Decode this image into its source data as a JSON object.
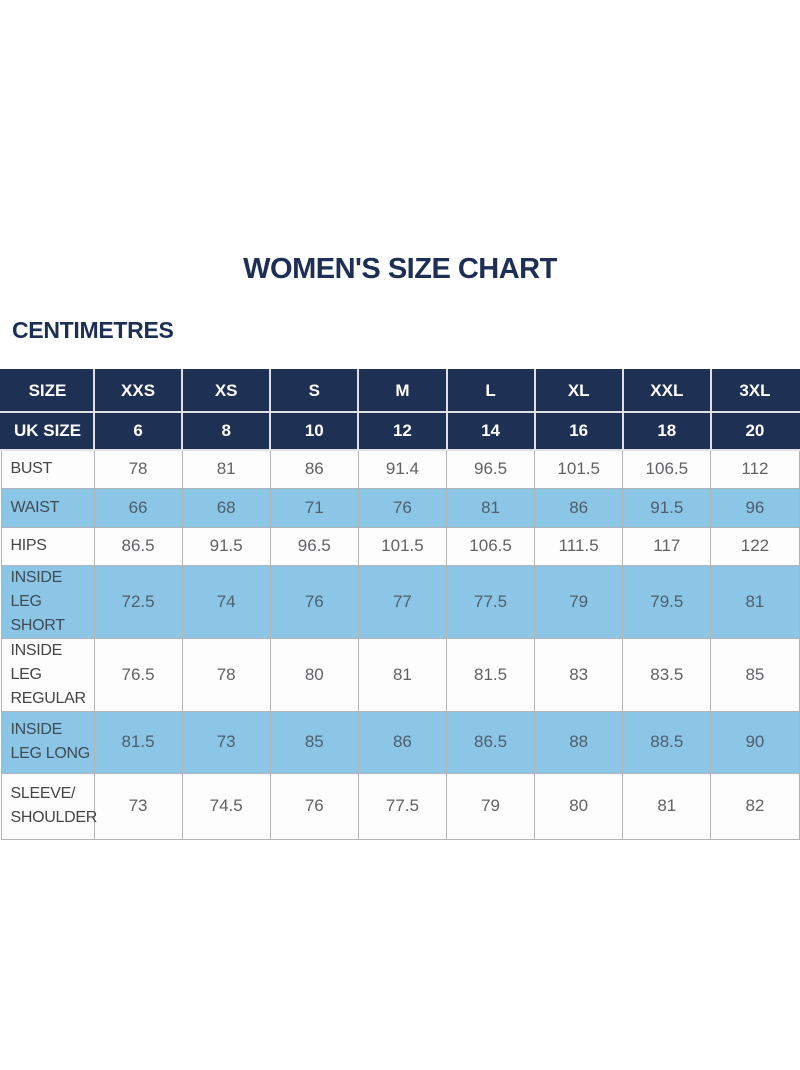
{
  "page": {
    "title": "WOMEN'S SIZE CHART",
    "unit_label": "CENTIMETRES"
  },
  "colors": {
    "navy": "#1e3054",
    "light_blue": "#8cc6e7",
    "header_text": "#ffffff",
    "title_text": "#1d2f55",
    "label_text": "#454547",
    "value_text": "#616265",
    "border": "#b3b4b6"
  },
  "chart_data": {
    "type": "table",
    "title": "WOMEN'S SIZE CHART",
    "unit": "CENTIMETRES",
    "header_rows": [
      {
        "label": "SIZE",
        "values": [
          "XXS",
          "XS",
          "S",
          "M",
          "L",
          "XL",
          "XXL",
          "3XL"
        ]
      },
      {
        "label": "UK SIZE",
        "values": [
          "6",
          "8",
          "10",
          "12",
          "14",
          "16",
          "18",
          "20"
        ]
      }
    ],
    "rows": [
      {
        "label": "BUST",
        "shaded": false,
        "values": [
          "78",
          "81",
          "86",
          "91.4",
          "96.5",
          "101.5",
          "106.5",
          "112"
        ]
      },
      {
        "label": "WAIST",
        "shaded": true,
        "values": [
          "66",
          "68",
          "71",
          "76",
          "81",
          "86",
          "91.5",
          "96"
        ]
      },
      {
        "label": "HIPS",
        "shaded": false,
        "values": [
          "86.5",
          "91.5",
          "96.5",
          "101.5",
          "106.5",
          "111.5",
          "117",
          "122"
        ]
      },
      {
        "label": "INSIDE LEG SHORT",
        "shaded": true,
        "values": [
          "72.5",
          "74",
          "76",
          "77",
          "77.5",
          "79",
          "79.5",
          "81"
        ]
      },
      {
        "label": "INSIDE LEG REGULAR",
        "shaded": false,
        "values": [
          "76.5",
          "78",
          "80",
          "81",
          "81.5",
          "83",
          "83.5",
          "85"
        ]
      },
      {
        "label": "INSIDE LEG LONG",
        "shaded": true,
        "values": [
          "81.5",
          "73",
          "85",
          "86",
          "86.5",
          "88",
          "88.5",
          "90"
        ]
      },
      {
        "label": "SLEEVE/ SHOULDER",
        "shaded": false,
        "values": [
          "73",
          "74.5",
          "76",
          "77.5",
          "79",
          "80",
          "81",
          "82"
        ]
      }
    ]
  }
}
